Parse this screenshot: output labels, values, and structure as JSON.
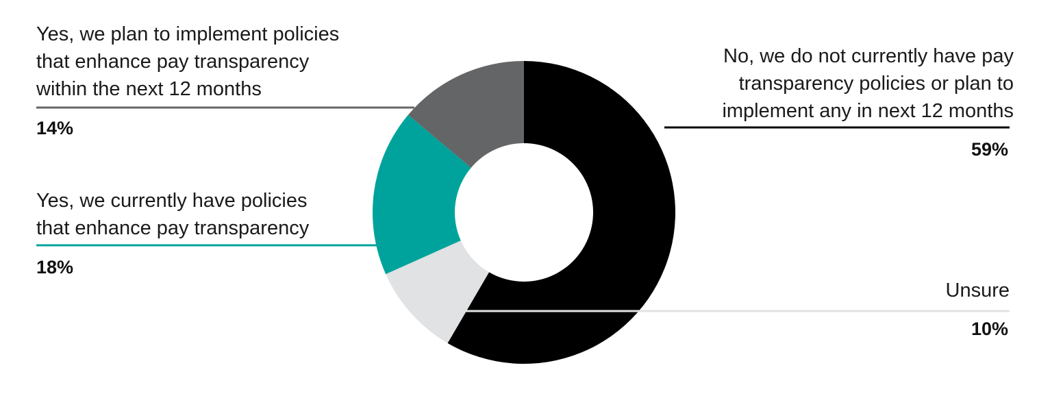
{
  "chart_data": {
    "type": "pie",
    "donut": true,
    "title": "",
    "slices": [
      {
        "label_lines": [
          "No, we do not currently have pay",
          "transparency policies or plan to",
          "implement any in next 12 months"
        ],
        "value": 59,
        "value_label": "59%",
        "color": "#000000"
      },
      {
        "label_lines": [
          "Unsure"
        ],
        "value": 10,
        "value_label": "10%",
        "color": "#e1e2e3"
      },
      {
        "label_lines": [
          "Yes, we currently have policies",
          "that enhance pay transparency"
        ],
        "value": 18,
        "value_label": "18%",
        "color": "#00a39b"
      },
      {
        "label_lines": [
          "Yes, we plan to implement policies",
          "that enhance pay transparency",
          "within the next 12 months"
        ],
        "value": 14,
        "value_label": "14%",
        "color": "#646567"
      }
    ]
  }
}
